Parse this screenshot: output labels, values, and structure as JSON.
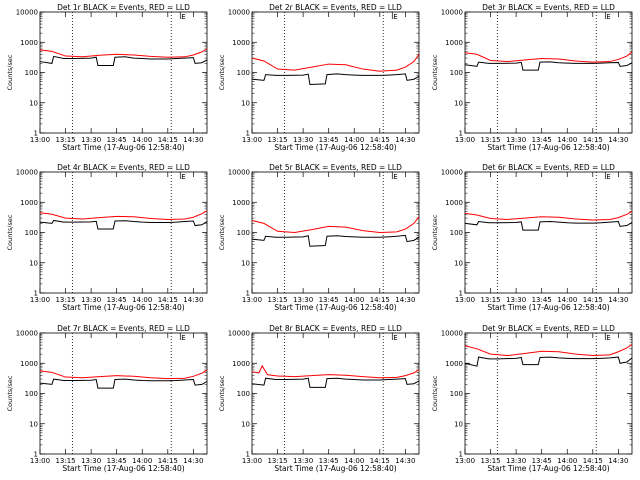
{
  "page": {
    "common": {
      "xlabel": "Start Time (17-Aug-06 12:58:40)",
      "ylabel": "Counts/sec",
      "xticks": [
        "13:00",
        "13:15",
        "13:30",
        "13:45",
        "14:00",
        "14:15",
        "14:30"
      ],
      "yticks": [
        "1",
        "10",
        "100",
        "1000",
        "10000"
      ],
      "corner_mark": "E"
    }
  },
  "chart_data": [
    {
      "type": "line",
      "title": "Det 1r BLACK = Events, RED = LLD",
      "xlabel": "Start Time (17-Aug-06 12:58:40)",
      "ylabel": "Counts/sec",
      "x_range": [
        "13:00",
        "14:38"
      ],
      "ylim": [
        1,
        10000
      ],
      "y_scale": "log",
      "vlines": [
        "13:19",
        "14:17"
      ],
      "colors": {
        "events": "#000000",
        "lld": "#ff0000"
      },
      "series": [
        {
          "name": "Events",
          "color": "#000000",
          "x": [
            "13:00",
            "13:07",
            "13:08",
            "13:14",
            "13:20",
            "13:30",
            "13:33",
            "13:34",
            "13:43",
            "13:44",
            "13:50",
            "13:55",
            "14:00",
            "14:05",
            "14:10",
            "14:15",
            "14:20",
            "14:25",
            "14:30",
            "14:31",
            "14:35",
            "14:38"
          ],
          "y": [
            230,
            200,
            340,
            290,
            290,
            300,
            320,
            170,
            170,
            320,
            330,
            300,
            290,
            280,
            280,
            280,
            290,
            300,
            310,
            200,
            210,
            260
          ]
        },
        {
          "name": "LLD",
          "color": "#ff0000",
          "x": [
            "13:00",
            "13:07",
            "13:15",
            "13:25",
            "13:35",
            "13:45",
            "13:55",
            "14:05",
            "14:15",
            "14:25",
            "14:30",
            "14:35",
            "14:38"
          ],
          "y": [
            560,
            500,
            350,
            330,
            370,
            400,
            380,
            340,
            320,
            330,
            380,
            480,
            600
          ]
        }
      ]
    },
    {
      "type": "line",
      "title": "Det 2r BLACK = Events, RED = LLD",
      "xlabel": "Start Time (17-Aug-06 12:58:40)",
      "ylabel": "Counts/sec",
      "x_range": [
        "13:00",
        "14:38"
      ],
      "ylim": [
        1,
        10000
      ],
      "y_scale": "log",
      "vlines": [
        "13:19",
        "14:17"
      ],
      "colors": {
        "events": "#000000",
        "lld": "#ff0000"
      },
      "series": [
        {
          "name": "Events",
          "color": "#000000",
          "x": [
            "13:00",
            "13:07",
            "13:08",
            "13:14",
            "13:20",
            "13:30",
            "13:33",
            "13:34",
            "13:43",
            "13:44",
            "13:50",
            "13:55",
            "14:00",
            "14:05",
            "14:10",
            "14:15",
            "14:20",
            "14:25",
            "14:30",
            "14:31",
            "14:35",
            "14:38"
          ],
          "y": [
            60,
            55,
            85,
            80,
            80,
            82,
            88,
            40,
            42,
            85,
            90,
            85,
            82,
            80,
            80,
            80,
            82,
            85,
            90,
            55,
            60,
            75
          ]
        },
        {
          "name": "LLD",
          "color": "#ff0000",
          "x": [
            "13:00",
            "13:07",
            "13:15",
            "13:25",
            "13:35",
            "13:45",
            "13:55",
            "14:05",
            "14:15",
            "14:25",
            "14:30",
            "14:35",
            "14:38"
          ],
          "y": [
            300,
            240,
            130,
            120,
            150,
            190,
            180,
            130,
            110,
            120,
            150,
            230,
            400
          ]
        }
      ]
    },
    {
      "type": "line",
      "title": "Det 3r BLACK = Events, RED = LLD",
      "xlabel": "Start Time (17-Aug-06 12:58:40)",
      "ylabel": "Counts/sec",
      "x_range": [
        "13:00",
        "14:38"
      ],
      "ylim": [
        1,
        10000
      ],
      "y_scale": "log",
      "vlines": [
        "13:19",
        "14:17"
      ],
      "colors": {
        "events": "#000000",
        "lld": "#ff0000"
      },
      "series": [
        {
          "name": "Events",
          "color": "#000000",
          "x": [
            "13:00",
            "13:07",
            "13:08",
            "13:14",
            "13:20",
            "13:30",
            "13:33",
            "13:34",
            "13:43",
            "13:44",
            "13:50",
            "13:55",
            "14:00",
            "14:05",
            "14:10",
            "14:15",
            "14:20",
            "14:25",
            "14:30",
            "14:31",
            "14:35",
            "14:38"
          ],
          "y": [
            180,
            160,
            220,
            200,
            200,
            205,
            215,
            120,
            120,
            220,
            225,
            210,
            205,
            200,
            200,
            200,
            205,
            210,
            215,
            160,
            170,
            210
          ]
        },
        {
          "name": "LLD",
          "color": "#ff0000",
          "x": [
            "13:00",
            "13:07",
            "13:15",
            "13:25",
            "13:35",
            "13:45",
            "13:55",
            "14:05",
            "14:15",
            "14:25",
            "14:30",
            "14:35",
            "14:38"
          ],
          "y": [
            450,
            400,
            250,
            230,
            260,
            290,
            280,
            240,
            220,
            230,
            270,
            350,
            480
          ]
        }
      ]
    },
    {
      "type": "line",
      "title": "Det 4r BLACK = Events, RED = LLD",
      "xlabel": "Start Time (17-Aug-06 12:58:40)",
      "ylabel": "Counts/sec",
      "x_range": [
        "13:00",
        "14:38"
      ],
      "ylim": [
        1,
        10000
      ],
      "y_scale": "log",
      "vlines": [
        "13:19",
        "14:17"
      ],
      "colors": {
        "events": "#000000",
        "lld": "#ff0000"
      },
      "series": [
        {
          "name": "Events",
          "color": "#000000",
          "x": [
            "13:00",
            "13:07",
            "13:08",
            "13:14",
            "13:20",
            "13:30",
            "13:33",
            "13:34",
            "13:43",
            "13:44",
            "13:50",
            "13:55",
            "14:00",
            "14:05",
            "14:10",
            "14:15",
            "14:20",
            "14:25",
            "14:30",
            "14:31",
            "14:35",
            "14:38"
          ],
          "y": [
            220,
            200,
            250,
            220,
            220,
            225,
            235,
            130,
            130,
            240,
            245,
            230,
            220,
            215,
            215,
            215,
            220,
            230,
            240,
            170,
            180,
            230
          ]
        },
        {
          "name": "LLD",
          "color": "#ff0000",
          "x": [
            "13:00",
            "13:07",
            "13:15",
            "13:25",
            "13:35",
            "13:45",
            "13:55",
            "14:05",
            "14:15",
            "14:25",
            "14:30",
            "14:35",
            "14:38"
          ],
          "y": [
            450,
            400,
            300,
            280,
            310,
            340,
            330,
            290,
            270,
            280,
            320,
            420,
            520
          ]
        }
      ]
    },
    {
      "type": "line",
      "title": "Det 5r BLACK = Events, RED = LLD",
      "xlabel": "Start Time (17-Aug-06 12:58:40)",
      "ylabel": "Counts/sec",
      "x_range": [
        "13:00",
        "14:38"
      ],
      "ylim": [
        1,
        10000
      ],
      "y_scale": "log",
      "vlines": [
        "13:19",
        "14:17"
      ],
      "colors": {
        "events": "#000000",
        "lld": "#ff0000"
      },
      "series": [
        {
          "name": "Events",
          "color": "#000000",
          "x": [
            "13:00",
            "13:07",
            "13:08",
            "13:14",
            "13:20",
            "13:30",
            "13:33",
            "13:34",
            "13:43",
            "13:44",
            "13:50",
            "13:55",
            "14:00",
            "14:05",
            "14:10",
            "14:15",
            "14:20",
            "14:25",
            "14:30",
            "14:31",
            "14:35",
            "14:38"
          ],
          "y": [
            60,
            55,
            75,
            70,
            70,
            72,
            78,
            35,
            37,
            75,
            78,
            74,
            72,
            70,
            70,
            70,
            72,
            75,
            80,
            50,
            55,
            70
          ]
        },
        {
          "name": "LLD",
          "color": "#ff0000",
          "x": [
            "13:00",
            "13:07",
            "13:15",
            "13:25",
            "13:35",
            "13:45",
            "13:55",
            "14:05",
            "14:15",
            "14:25",
            "14:30",
            "14:35",
            "14:38"
          ],
          "y": [
            250,
            200,
            110,
            100,
            125,
            160,
            150,
            115,
            100,
            105,
            130,
            200,
            330
          ]
        }
      ]
    },
    {
      "type": "line",
      "title": "Det 6r BLACK = Events, RED = LLD",
      "xlabel": "Start Time (17-Aug-06 12:58:40)",
      "ylabel": "Counts/sec",
      "x_range": [
        "13:00",
        "14:38"
      ],
      "ylim": [
        1,
        10000
      ],
      "y_scale": "log",
      "vlines": [
        "13:19",
        "14:17"
      ],
      "colors": {
        "events": "#000000",
        "lld": "#ff0000"
      },
      "series": [
        {
          "name": "Events",
          "color": "#000000",
          "x": [
            "13:00",
            "13:07",
            "13:08",
            "13:14",
            "13:20",
            "13:30",
            "13:33",
            "13:34",
            "13:43",
            "13:44",
            "13:50",
            "13:55",
            "14:00",
            "14:05",
            "14:10",
            "14:15",
            "14:20",
            "14:25",
            "14:30",
            "14:31",
            "14:35",
            "14:38"
          ],
          "y": [
            200,
            180,
            230,
            210,
            210,
            215,
            225,
            120,
            120,
            225,
            230,
            220,
            210,
            205,
            205,
            205,
            210,
            220,
            230,
            160,
            170,
            215
          ]
        },
        {
          "name": "LLD",
          "color": "#ff0000",
          "x": [
            "13:00",
            "13:07",
            "13:15",
            "13:25",
            "13:35",
            "13:45",
            "13:55",
            "14:05",
            "14:15",
            "14:25",
            "14:30",
            "14:35",
            "14:38"
          ],
          "y": [
            430,
            380,
            290,
            270,
            300,
            330,
            320,
            280,
            260,
            270,
            310,
            400,
            500
          ]
        }
      ]
    },
    {
      "type": "line",
      "title": "Det 7r BLACK = Events, RED = LLD",
      "xlabel": "Start Time (17-Aug-06 12:58:40)",
      "ylabel": "Counts/sec",
      "x_range": [
        "13:00",
        "14:38"
      ],
      "ylim": [
        1,
        10000
      ],
      "y_scale": "log",
      "vlines": [
        "13:19",
        "14:17"
      ],
      "colors": {
        "events": "#000000",
        "lld": "#ff0000"
      },
      "series": [
        {
          "name": "Events",
          "color": "#000000",
          "x": [
            "13:00",
            "13:07",
            "13:08",
            "13:14",
            "13:20",
            "13:30",
            "13:33",
            "13:34",
            "13:43",
            "13:44",
            "13:50",
            "13:55",
            "14:00",
            "14:05",
            "14:10",
            "14:15",
            "14:20",
            "14:25",
            "14:30",
            "14:31",
            "14:35",
            "14:38"
          ],
          "y": [
            220,
            200,
            300,
            270,
            270,
            275,
            290,
            150,
            150,
            290,
            300,
            280,
            270,
            265,
            265,
            265,
            270,
            280,
            290,
            190,
            200,
            250
          ]
        },
        {
          "name": "LLD",
          "color": "#ff0000",
          "x": [
            "13:00",
            "13:07",
            "13:15",
            "13:25",
            "13:35",
            "13:45",
            "13:55",
            "14:05",
            "14:15",
            "14:25",
            "14:30",
            "14:35",
            "14:38"
          ],
          "y": [
            560,
            500,
            350,
            330,
            360,
            390,
            370,
            330,
            310,
            320,
            370,
            470,
            600
          ]
        }
      ]
    },
    {
      "type": "line",
      "title": "Det 8r BLACK = Events, RED = LLD",
      "xlabel": "Start Time (17-Aug-06 12:58:40)",
      "ylabel": "Counts/sec",
      "x_range": [
        "13:00",
        "14:38"
      ],
      "ylim": [
        1,
        10000
      ],
      "y_scale": "log",
      "vlines": [
        "13:19",
        "14:17"
      ],
      "colors": {
        "events": "#000000",
        "lld": "#ff0000"
      },
      "series": [
        {
          "name": "Events",
          "color": "#000000",
          "x": [
            "13:00",
            "13:07",
            "13:08",
            "13:14",
            "13:20",
            "13:30",
            "13:33",
            "13:34",
            "13:43",
            "13:44",
            "13:50",
            "13:55",
            "14:00",
            "14:05",
            "14:10",
            "14:15",
            "14:20",
            "14:25",
            "14:30",
            "14:31",
            "14:35",
            "14:38"
          ],
          "y": [
            210,
            190,
            320,
            290,
            290,
            300,
            320,
            160,
            160,
            310,
            320,
            300,
            290,
            280,
            280,
            280,
            290,
            300,
            310,
            200,
            210,
            260
          ]
        },
        {
          "name": "LLD",
          "color": "#ff0000",
          "x": [
            "13:00",
            "13:04",
            "13:06",
            "13:09",
            "13:15",
            "13:25",
            "13:35",
            "13:45",
            "13:55",
            "14:05",
            "14:15",
            "14:25",
            "14:30",
            "14:35",
            "14:38"
          ],
          "y": [
            520,
            480,
            820,
            420,
            380,
            360,
            390,
            420,
            400,
            360,
            330,
            340,
            390,
            480,
            620
          ]
        }
      ]
    },
    {
      "type": "line",
      "title": "Det 9r BLACK = Events, RED = LLD",
      "xlabel": "Start Time (17-Aug-06 12:58:40)",
      "ylabel": "Counts/sec",
      "x_range": [
        "13:00",
        "14:38"
      ],
      "ylim": [
        1,
        10000
      ],
      "y_scale": "log",
      "vlines": [
        "13:19",
        "14:17"
      ],
      "colors": {
        "events": "#000000",
        "lld": "#ff0000"
      },
      "series": [
        {
          "name": "Events",
          "color": "#000000",
          "x": [
            "13:00",
            "13:07",
            "13:08",
            "13:14",
            "13:20",
            "13:30",
            "13:33",
            "13:34",
            "13:43",
            "13:44",
            "13:50",
            "13:55",
            "14:00",
            "14:05",
            "14:10",
            "14:15",
            "14:20",
            "14:25",
            "14:30",
            "14:31",
            "14:35",
            "14:38"
          ],
          "y": [
            1000,
            800,
            1600,
            1400,
            1400,
            1450,
            1550,
            900,
            900,
            1550,
            1600,
            1500,
            1450,
            1420,
            1420,
            1420,
            1450,
            1500,
            1600,
            1000,
            1100,
            1500
          ]
        },
        {
          "name": "LLD",
          "color": "#ff0000",
          "x": [
            "13:00",
            "13:07",
            "13:15",
            "13:25",
            "13:35",
            "13:45",
            "13:55",
            "14:05",
            "14:15",
            "14:25",
            "14:30",
            "14:35",
            "14:38"
          ],
          "y": [
            3800,
            3000,
            2000,
            1800,
            2100,
            2500,
            2400,
            2000,
            1800,
            1900,
            2400,
            3200,
            4200
          ]
        }
      ]
    }
  ]
}
